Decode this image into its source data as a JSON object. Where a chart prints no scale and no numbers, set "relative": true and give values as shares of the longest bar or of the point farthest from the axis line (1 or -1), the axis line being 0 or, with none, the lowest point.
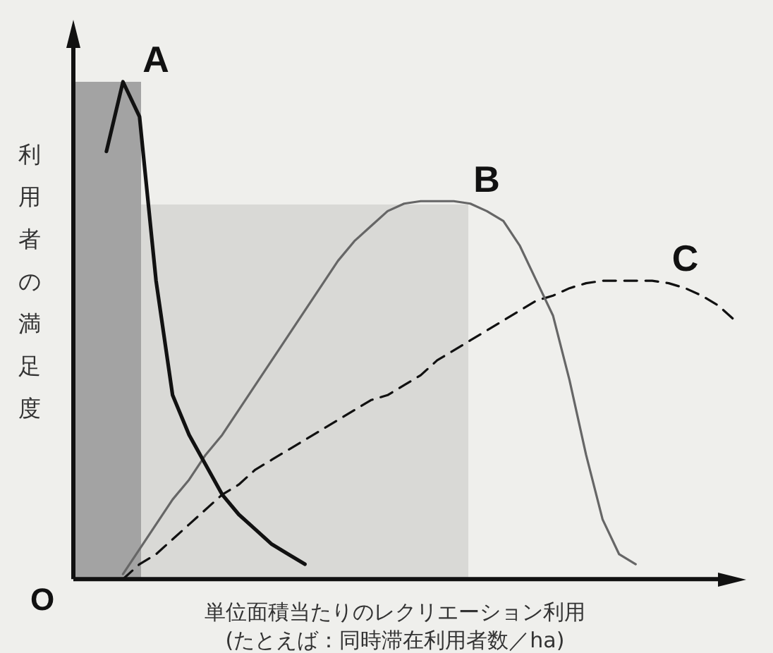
{
  "chart_data": {
    "type": "line",
    "relative": true,
    "ylabel": "利用者の満足度",
    "xlabel": "単位面積当たりのレクリエーション利用\n(たとえば：同時滞在利用者数／ha)",
    "annotations": [
      "O"
    ],
    "categories": [
      null,
      null,
      null,
      null,
      null,
      null,
      null,
      null,
      null,
      null,
      null,
      null,
      null,
      null,
      null,
      null,
      null,
      null,
      null,
      null,
      null,
      null,
      null,
      null,
      null,
      null,
      null,
      null,
      null,
      null,
      null,
      null,
      null,
      null,
      null,
      null,
      null,
      null,
      null,
      null,
      null
    ],
    "series": [
      {
        "name": "A",
        "color": "#111111",
        "line_style": "solid",
        "values": [
          null,
          null,
          0.86,
          1,
          0.93,
          0.6,
          0.37,
          0.29,
          0.23,
          0.17,
          0.13,
          0.1,
          0.07,
          0.05,
          0.03,
          null,
          null,
          null,
          null,
          null,
          null,
          null,
          null,
          null,
          null,
          null,
          null,
          null,
          null,
          null,
          null,
          null,
          null,
          null,
          null,
          null,
          null,
          null,
          null,
          null,
          null
        ]
      },
      {
        "name": "B",
        "color": "#666666",
        "line_style": "solid",
        "values": [
          null,
          null,
          null,
          0.01,
          0.06,
          0.11,
          0.16,
          0.2,
          0.25,
          0.29,
          0.34,
          0.39,
          0.44,
          0.49,
          0.54,
          0.59,
          0.64,
          0.68,
          0.71,
          0.74,
          0.755,
          0.76,
          0.76,
          0.76,
          0.755,
          0.74,
          0.72,
          0.67,
          0.6,
          0.53,
          0.4,
          0.25,
          0.12,
          0.05,
          0.03,
          null,
          null,
          null,
          null,
          null,
          null
        ]
      },
      {
        "name": "C",
        "color": "#111111",
        "line_style": "dashed",
        "values": [
          null,
          null,
          null,
          0,
          0.03,
          0.05,
          0.08,
          0.11,
          0.14,
          0.17,
          0.19,
          0.22,
          0.24,
          0.26,
          0.28,
          0.3,
          0.32,
          0.34,
          0.36,
          0.37,
          0.39,
          0.41,
          0.44,
          0.46,
          0.48,
          0.5,
          0.52,
          0.54,
          0.56,
          0.57,
          0.585,
          0.595,
          0.6,
          0.6,
          0.6,
          0.6,
          0.595,
          0.585,
          0.57,
          0.55,
          0.52
        ]
      }
    ]
  }
}
